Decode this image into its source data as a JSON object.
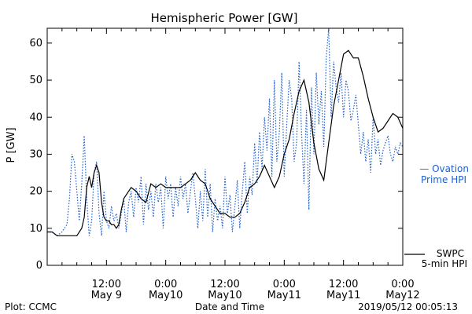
{
  "chart_data": {
    "type": "line",
    "title": "Hemispheric Power [GW]",
    "xlabel": "Date and Time",
    "ylabel": "P [GW]",
    "ylim": [
      0,
      64
    ],
    "yticks": [
      0,
      10,
      20,
      30,
      40,
      50,
      60
    ],
    "xlim_hours": [
      0,
      72
    ],
    "xticks": [
      {
        "h": 12,
        "line1": "12:00",
        "line2": "May 9"
      },
      {
        "h": 24,
        "line1": "0:00",
        "line2": "May10"
      },
      {
        "h": 36,
        "line1": "12:00",
        "line2": "May10"
      },
      {
        "h": 48,
        "line1": "0:00",
        "line2": "May11"
      },
      {
        "h": 60,
        "line1": "12:00",
        "line2": "May11"
      },
      {
        "h": 72,
        "line1": "0:00",
        "line2": "May12"
      }
    ],
    "series": [
      {
        "name": "SWPC 5-min HPI",
        "color": "#000000",
        "style": "solid",
        "x": [
          0,
          1,
          2,
          3,
          4,
          5,
          6,
          6.5,
          7,
          7.5,
          8,
          8.5,
          9,
          9.5,
          10,
          10.5,
          11,
          11.5,
          12,
          12.5,
          13,
          13.5,
          14,
          14.5,
          15,
          15.5,
          16,
          17,
          18,
          19,
          20,
          21,
          22,
          23,
          24,
          25,
          26,
          27,
          28,
          29,
          30,
          31,
          32,
          33,
          34,
          35,
          36,
          37,
          38,
          39,
          40,
          41,
          42,
          43,
          44,
          45,
          46,
          47,
          48,
          49,
          50,
          51,
          52,
          53,
          54,
          55,
          56,
          57,
          58,
          59,
          60,
          61,
          62,
          63,
          64,
          65,
          66,
          67,
          68,
          69,
          70,
          71,
          72
        ],
        "values": [
          9,
          9,
          8,
          8,
          8,
          8,
          8,
          9,
          10,
          13,
          21,
          24,
          21,
          25,
          27,
          25,
          17,
          13,
          12,
          12,
          11,
          11,
          10,
          11,
          15,
          18,
          19,
          21,
          20,
          18,
          17,
          22,
          21,
          22,
          21,
          21,
          21,
          21,
          22,
          23,
          25,
          23,
          22,
          18,
          16,
          14,
          14,
          13,
          13,
          14,
          17,
          21,
          22,
          24,
          27,
          24,
          21,
          24,
          30,
          34,
          41,
          47,
          50,
          44,
          33,
          26,
          23,
          33,
          43,
          50,
          57,
          58,
          56,
          56,
          51,
          45,
          40,
          36,
          37,
          39,
          41,
          40,
          37
        ]
      },
      {
        "name": "Ovation Prime HPI",
        "color": "#1f5fd0",
        "style": "dotted",
        "x": [
          0,
          1,
          2,
          3,
          4,
          4.5,
          5,
          5.5,
          6,
          6.5,
          7,
          7.5,
          8,
          8.5,
          9,
          9.5,
          10,
          10.5,
          11,
          11.5,
          12,
          12.5,
          13,
          13.5,
          14,
          14.5,
          15,
          15.5,
          16,
          16.5,
          17,
          17.5,
          18,
          18.5,
          19,
          19.5,
          20,
          20.5,
          21,
          21.5,
          22,
          22.5,
          23,
          23.5,
          24,
          24.5,
          25,
          25.5,
          26,
          26.5,
          27,
          27.5,
          28,
          28.5,
          29,
          29.5,
          30,
          30.5,
          31,
          31.5,
          32,
          32.5,
          33,
          33.5,
          34,
          34.5,
          35,
          35.5,
          36,
          36.5,
          37,
          37.5,
          38,
          38.5,
          39,
          39.5,
          40,
          40.5,
          41,
          41.5,
          42,
          42.5,
          43,
          43.5,
          44,
          44.5,
          45,
          45.5,
          46,
          46.5,
          47,
          47.5,
          48,
          48.5,
          49,
          49.5,
          50,
          50.5,
          51,
          51.5,
          52,
          52.5,
          53,
          53.5,
          54,
          54.5,
          55,
          55.5,
          56,
          56.5,
          57,
          57.5,
          58,
          58.5,
          59,
          59.5,
          60,
          60.5,
          61,
          61.5,
          62,
          62.5,
          63,
          63.5,
          64,
          64.5,
          65,
          65.5,
          66,
          66.5,
          67,
          67.5,
          68,
          68.5,
          69,
          69.5,
          70,
          70.5,
          71,
          71.5,
          72
        ],
        "values": [
          9,
          9,
          8,
          9,
          11,
          18,
          30,
          28,
          20,
          12,
          22,
          35,
          18,
          8,
          12,
          25,
          28,
          14,
          8,
          20,
          12,
          10,
          16,
          12,
          14,
          10,
          14,
          18,
          9,
          17,
          20,
          13,
          21,
          17,
          24,
          11,
          22,
          15,
          20,
          13,
          22,
          17,
          21,
          10,
          24,
          18,
          22,
          13,
          21,
          16,
          24,
          18,
          22,
          14,
          20,
          25,
          18,
          10,
          20,
          12,
          26,
          13,
          22,
          9,
          18,
          12,
          16,
          10,
          24,
          14,
          19,
          9,
          16,
          23,
          10,
          20,
          28,
          14,
          24,
          19,
          33,
          22,
          36,
          26,
          40,
          31,
          45,
          24,
          50,
          28,
          36,
          52,
          24,
          38,
          50,
          45,
          28,
          33,
          55,
          36,
          22,
          42,
          15,
          48,
          30,
          52,
          38,
          47,
          32,
          56,
          64,
          40,
          55,
          48,
          44,
          52,
          40,
          50,
          47,
          39,
          42,
          46,
          38,
          30,
          36,
          28,
          34,
          25,
          40,
          30,
          34,
          27,
          31,
          33,
          35,
          30,
          28,
          32,
          30,
          33,
          32
        ]
      }
    ],
    "legend_position": "right-bottom",
    "grid": false,
    "plot_credit": "Plot: CCMC",
    "timestamp": "2019/05/12 00:05:13",
    "legend": {
      "swpc_line1": "SWPC",
      "swpc_line2": "5-min HPI",
      "ovation_line1": "— Ovation",
      "ovation_line2": "Prime HPI"
    }
  }
}
